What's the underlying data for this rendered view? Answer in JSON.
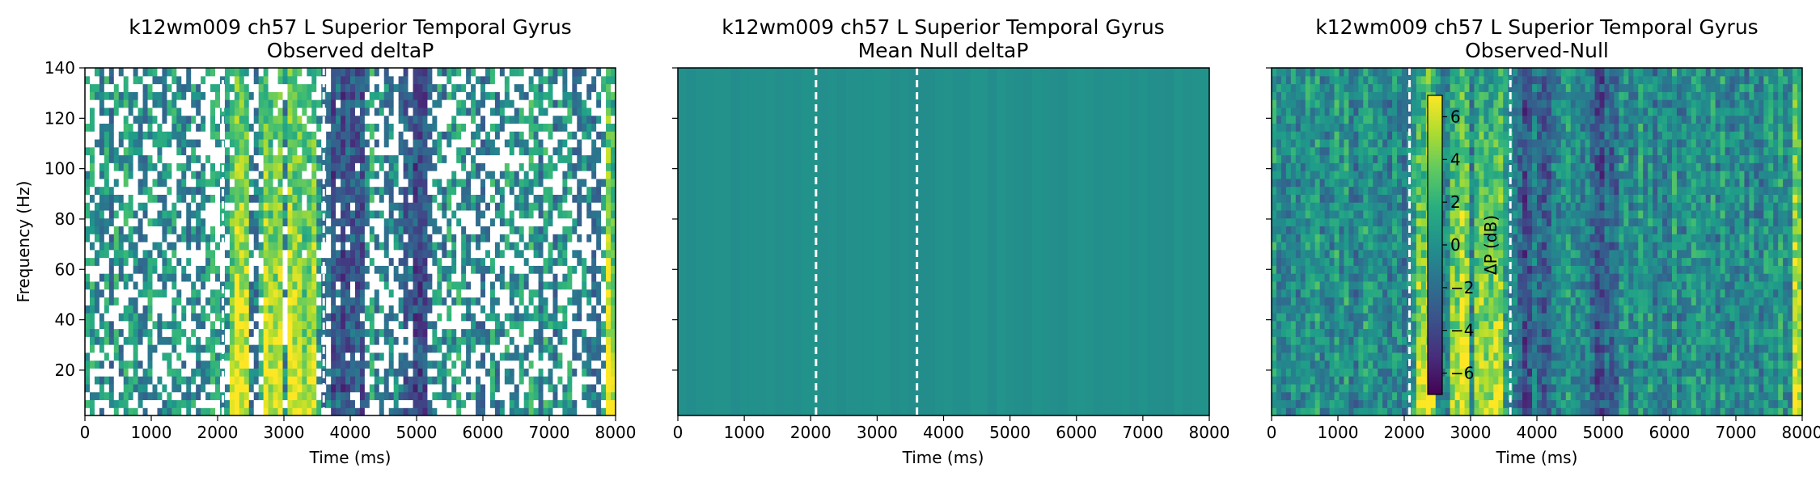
{
  "figure": {
    "colormap": "viridis",
    "marker_color": "#ffffff"
  },
  "chart_data": [
    {
      "type": "heatmap",
      "title": "k12wm009 ch57 L Superior Temporal Gyrus",
      "subtitle": "Observed deltaP",
      "xlabel": "Time (ms)",
      "ylabel": "Frequency (Hz)",
      "xlim": [
        0,
        8000
      ],
      "ylim": [
        2,
        140
      ],
      "xticks": [
        "0",
        "1000",
        "2000",
        "3000",
        "4000",
        "5000",
        "6000",
        "7000",
        "8000"
      ],
      "yticks": [
        "20",
        "40",
        "60",
        "80",
        "100",
        "120",
        "140"
      ],
      "show_yticklabels": true,
      "vertical_markers_ms": [
        2080,
        3600
      ],
      "masked_nonsignificant": true,
      "high_power_bands_ms": [
        [
          2200,
          2500
        ],
        [
          2700,
          2950
        ],
        [
          3050,
          3500
        ],
        [
          7850,
          8000
        ]
      ],
      "low_power_bands_ms": [
        [
          3700,
          4200
        ],
        [
          4800,
          5200
        ]
      ]
    },
    {
      "type": "heatmap",
      "title": "k12wm009 ch57 L Superior Temporal Gyrus",
      "subtitle": "Mean Null deltaP",
      "xlabel": "Time (ms)",
      "ylabel": "",
      "xlim": [
        0,
        8000
      ],
      "ylim": [
        2,
        140
      ],
      "xticks": [
        "0",
        "1000",
        "2000",
        "3000",
        "4000",
        "5000",
        "6000",
        "7000",
        "8000"
      ],
      "yticks": [
        "20",
        "40",
        "60",
        "80",
        "100",
        "120",
        "140"
      ],
      "show_yticklabels": false,
      "vertical_markers_ms": [
        2080,
        3600
      ],
      "masked_nonsignificant": false,
      "approx_value_db": 0
    },
    {
      "type": "heatmap",
      "title": "k12wm009 ch57 L Superior Temporal Gyrus",
      "subtitle": "Observed-Null",
      "xlabel": "Time (ms)",
      "ylabel": "",
      "xlim": [
        0,
        8000
      ],
      "ylim": [
        2,
        140
      ],
      "xticks": [
        "0",
        "1000",
        "2000",
        "3000",
        "4000",
        "5000",
        "6000",
        "7000",
        "8000"
      ],
      "yticks": [
        "20",
        "40",
        "60",
        "80",
        "100",
        "120",
        "140"
      ],
      "show_yticklabels": false,
      "vertical_markers_ms": [
        2080,
        3600
      ],
      "masked_nonsignificant": false,
      "high_power_bands_ms": [
        [
          2200,
          2500
        ],
        [
          2700,
          2950
        ],
        [
          3050,
          3500
        ],
        [
          7850,
          8000
        ]
      ],
      "low_power_bands_ms": [
        [
          3700,
          4200
        ],
        [
          4800,
          5200
        ]
      ],
      "colorbar": {
        "label": "ΔP (dB)",
        "min": -7,
        "max": 7,
        "ticks": [
          "6",
          "4",
          "2",
          "0",
          "−2",
          "−4",
          "−6"
        ],
        "tick_values": [
          6,
          4,
          2,
          0,
          -2,
          -4,
          -6
        ]
      }
    }
  ]
}
